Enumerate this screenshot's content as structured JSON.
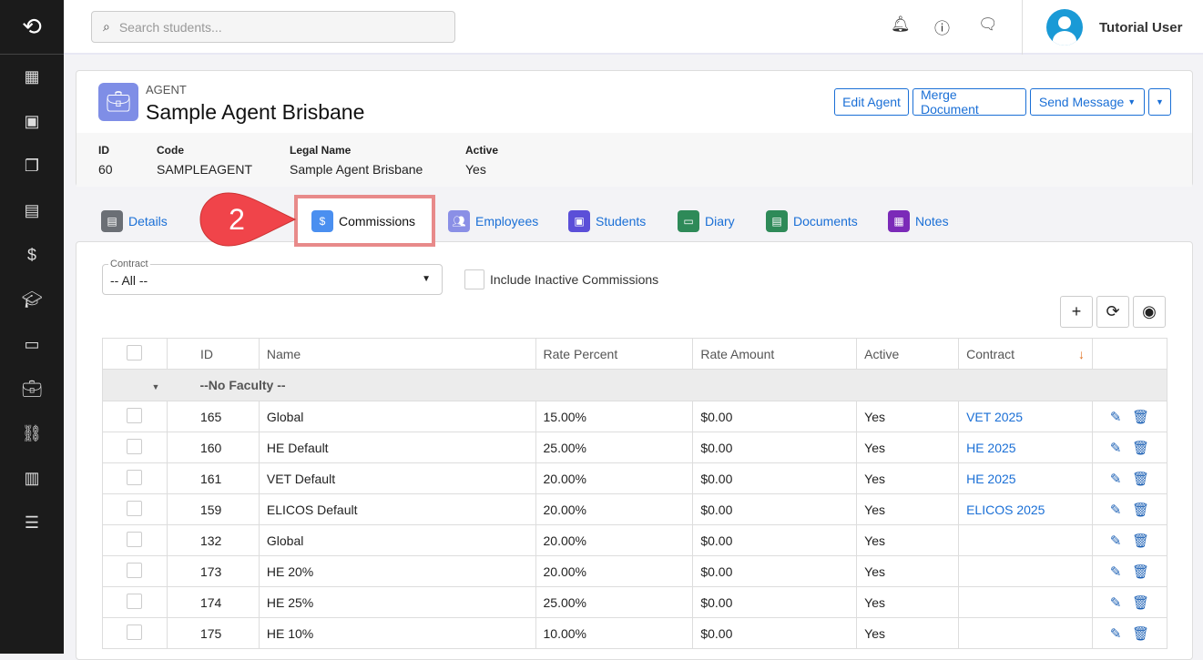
{
  "sidebar": {
    "items": [
      "dashboard-icon",
      "contacts-icon",
      "enrolments-icon",
      "layout-icon",
      "invoice-icon",
      "courses-icon",
      "book-icon",
      "agents-icon",
      "network-icon",
      "buildings-icon",
      "settings-icon"
    ]
  },
  "topbar": {
    "search_placeholder": "Search students...",
    "user_name": "Tutorial User"
  },
  "agent": {
    "kind": "AGENT",
    "title": "Sample Agent Brisbane",
    "buttons": {
      "edit": "Edit Agent",
      "merge": "Merge Document",
      "send": "Send Message"
    },
    "fields": [
      {
        "label": "ID",
        "value": "60"
      },
      {
        "label": "Code",
        "value": "SAMPLEAGENT"
      },
      {
        "label": "Legal Name",
        "value": "Sample Agent Brisbane"
      },
      {
        "label": "Active",
        "value": "Yes"
      }
    ]
  },
  "tabs": [
    {
      "label": "Details",
      "color": "#6b6f75"
    },
    {
      "label": "Commissions",
      "color": "#4a8ff0"
    },
    {
      "label": "Employees",
      "color": "#8a8fe6"
    },
    {
      "label": "Students",
      "color": "#5b4fd8"
    },
    {
      "label": "Diary",
      "color": "#2e8a58"
    },
    {
      "label": "Documents",
      "color": "#2e8a58"
    },
    {
      "label": "Notes",
      "color": "#7b2ab8"
    }
  ],
  "callout": {
    "number": "2",
    "color": "#f0444a"
  },
  "filters": {
    "contract_label": "Contract",
    "contract_value": "-- All --",
    "include_inactive": "Include Inactive Commissions"
  },
  "table": {
    "headers": [
      "ID",
      "Name",
      "Rate Percent",
      "Rate Amount",
      "Active",
      "Contract"
    ],
    "group": "--No Faculty --",
    "rows": [
      [
        "165",
        "Global",
        "15.00%",
        "$0.00",
        "Yes",
        "VET 2025"
      ],
      [
        "160",
        "HE Default",
        "25.00%",
        "$0.00",
        "Yes",
        "HE 2025"
      ],
      [
        "161",
        "VET Default",
        "20.00%",
        "$0.00",
        "Yes",
        "HE 2025"
      ],
      [
        "159",
        "ELICOS Default",
        "20.00%",
        "$0.00",
        "Yes",
        "ELICOS 2025"
      ],
      [
        "132",
        "Global",
        "20.00%",
        "$0.00",
        "Yes",
        ""
      ],
      [
        "173",
        "HE 20%",
        "20.00%",
        "$0.00",
        "Yes",
        ""
      ],
      [
        "174",
        "HE 25%",
        "25.00%",
        "$0.00",
        "Yes",
        ""
      ],
      [
        "175",
        "HE 10%",
        "10.00%",
        "$0.00",
        "Yes",
        ""
      ]
    ]
  }
}
